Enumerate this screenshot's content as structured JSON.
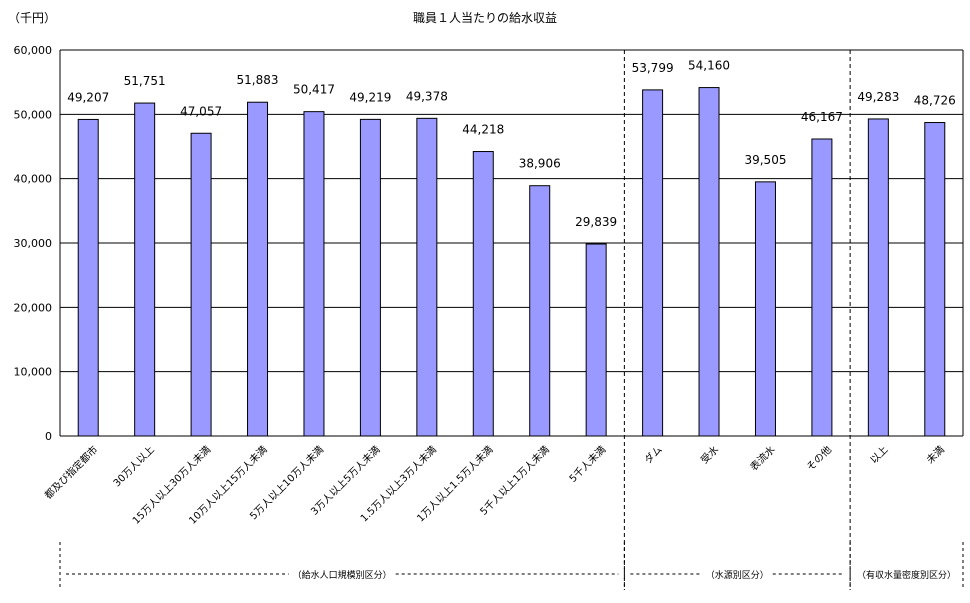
{
  "chart_data": {
    "type": "bar",
    "title": "職員１人当たりの給水収益",
    "unit_label": "（千円）",
    "ylim": [
      0,
      60000
    ],
    "yticks": [
      "0",
      "10,000",
      "20,000",
      "30,000",
      "40,000",
      "50,000",
      "60,000"
    ],
    "grid": true,
    "bar_color": "#9999ff",
    "categories": [
      "都及び指定都市",
      "30万人以上",
      "15万人以上30万人未満",
      "10万人以上15万人未満",
      "5万人以上10万人未満",
      "3万人以上5万人未満",
      "1.5万人以上3万人未満",
      "1万人以上1.5万人未満",
      "5千人以上1万人未満",
      "5千人未満",
      "ダム",
      "受水",
      "表流水",
      "その他",
      "以上",
      "未満"
    ],
    "values": [
      49207,
      51751,
      47057,
      51883,
      50417,
      49219,
      49378,
      44218,
      38906,
      29839,
      53799,
      54160,
      39505,
      46167,
      49283,
      48726
    ],
    "value_labels": [
      "49,207",
      "51,751",
      "47,057",
      "51,883",
      "50,417",
      "49,219",
      "49,378",
      "44,218",
      "38,906",
      "29,839",
      "53,799",
      "54,160",
      "39,505",
      "46,167",
      "49,283",
      "48,726"
    ],
    "groups": [
      {
        "label": "（給水人口規模別区分）",
        "start": 0,
        "end": 9
      },
      {
        "label": "（水源別区分）",
        "start": 10,
        "end": 13
      },
      {
        "label": "（有収水量密度別区分）",
        "start": 14,
        "end": 15
      }
    ]
  }
}
